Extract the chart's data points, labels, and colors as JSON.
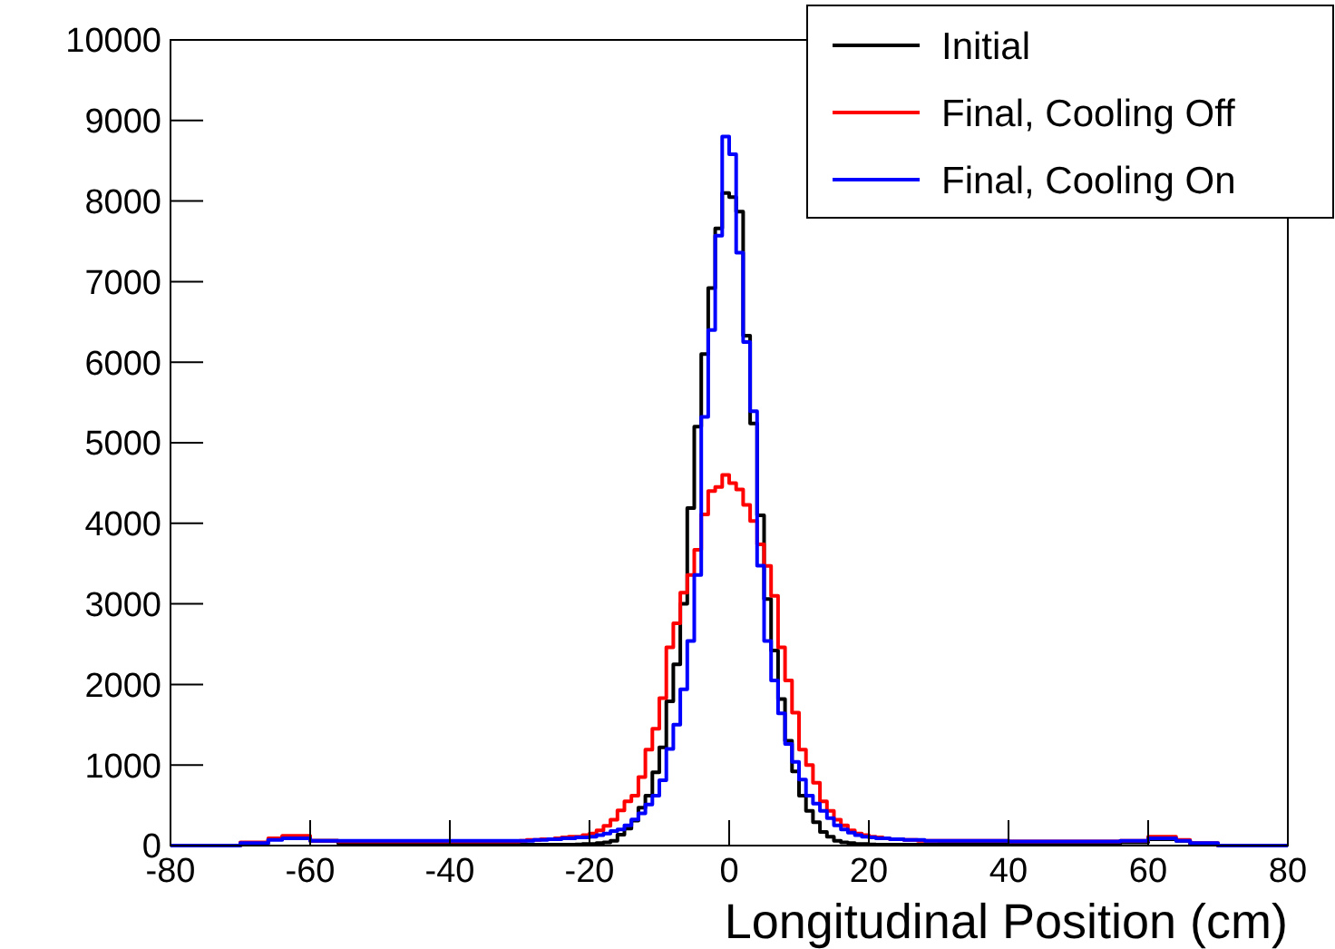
{
  "chart_data": {
    "type": "histogram",
    "xlabel": "Longitudinal Position (cm)",
    "bins": [
      -80,
      -70,
      -66,
      -64,
      -60,
      -56,
      -40,
      -30,
      -29,
      -28,
      -27,
      -26,
      -25,
      -24,
      -23,
      -22,
      -21,
      -20,
      -19,
      -18,
      -17,
      -16,
      -15,
      -14,
      -13,
      -12,
      -11,
      -10,
      -9,
      -8,
      -7,
      -6,
      -5,
      -4,
      -3,
      -2,
      -1,
      0,
      1,
      2,
      3,
      4,
      5,
      6,
      7,
      8,
      9,
      10,
      11,
      12,
      13,
      14,
      15,
      16,
      17,
      18,
      19,
      20,
      21,
      22,
      23,
      24,
      25,
      26,
      27,
      28,
      29,
      30,
      40,
      56,
      60,
      64,
      66,
      70,
      80
    ],
    "series": [
      {
        "name": "Initial",
        "color": "#000000",
        "values": [
          0,
          30,
          80,
          110,
          60,
          30,
          20,
          10,
          10,
          10,
          10,
          10,
          10,
          10,
          10,
          15,
          20,
          20,
          30,
          40,
          60,
          135,
          210,
          310,
          470,
          620,
          910,
          1220,
          1790,
          2250,
          3000,
          4190,
          5200,
          6100,
          6920,
          7660,
          8100,
          8050,
          7870,
          6330,
          5240,
          4100,
          3060,
          2420,
          1820,
          1300,
          920,
          620,
          430,
          290,
          170,
          110,
          60,
          40,
          30,
          20,
          20,
          15,
          10,
          10,
          10,
          10,
          10,
          10,
          10,
          10,
          10,
          20,
          20,
          40,
          80,
          60,
          20,
          0
        ]
      },
      {
        "name": "Final, Cooling Off",
        "color": "#ff0000",
        "values": [
          0,
          40,
          90,
          120,
          60,
          50,
          50,
          60,
          70,
          70,
          80,
          80,
          90,
          100,
          110,
          110,
          130,
          150,
          190,
          245,
          320,
          435,
          550,
          620,
          850,
          1190,
          1450,
          1830,
          2460,
          2760,
          3140,
          3360,
          3670,
          4110,
          4400,
          4450,
          4600,
          4500,
          4420,
          4230,
          4030,
          3740,
          3470,
          3100,
          2460,
          2050,
          1650,
          1190,
          1000,
          780,
          550,
          430,
          320,
          250,
          190,
          150,
          130,
          110,
          100,
          90,
          80,
          80,
          70,
          70,
          60,
          60,
          60,
          60,
          50,
          60,
          110,
          70,
          30,
          0
        ]
      },
      {
        "name": "Final, Cooling On",
        "color": "#0000ff",
        "values": [
          0,
          30,
          70,
          90,
          60,
          60,
          60,
          60,
          60,
          70,
          70,
          80,
          80,
          90,
          90,
          100,
          100,
          110,
          130,
          150,
          180,
          200,
          250,
          325,
          400,
          510,
          620,
          810,
          1200,
          1500,
          1940,
          2540,
          3360,
          5320,
          6400,
          7570,
          8800,
          8580,
          7360,
          6250,
          5390,
          3475,
          2540,
          2050,
          1640,
          1260,
          1040,
          820,
          620,
          520,
          430,
          340,
          250,
          200,
          160,
          130,
          110,
          100,
          90,
          90,
          80,
          80,
          70,
          70,
          70,
          60,
          60,
          60,
          50,
          60,
          90,
          60,
          30,
          0
        ]
      }
    ],
    "xlim": [
      -80,
      80
    ],
    "xticks": [
      -80,
      -60,
      -40,
      -20,
      0,
      20,
      40,
      60,
      80
    ],
    "ylim": [
      0,
      10000
    ],
    "yticks": [
      0,
      1000,
      2000,
      3000,
      4000,
      5000,
      6000,
      7000,
      8000,
      9000,
      10000
    ],
    "legend": "top right"
  }
}
